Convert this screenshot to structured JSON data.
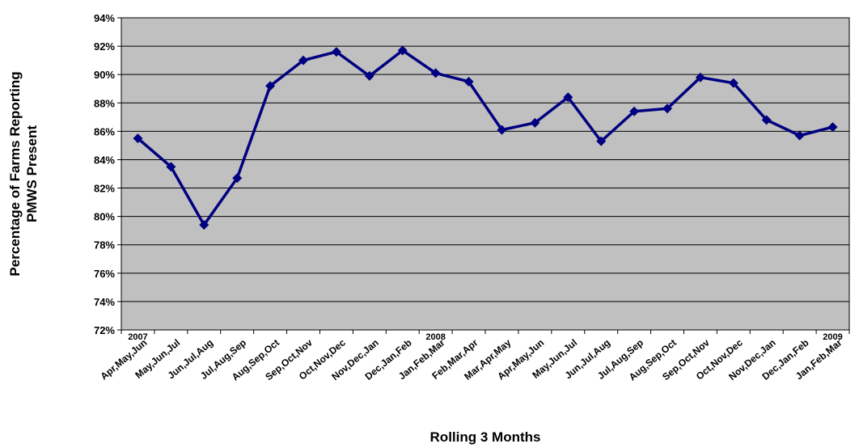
{
  "chart_data": {
    "type": "line",
    "title": "",
    "xlabel": "Rolling 3 Months",
    "ylabel_lines": [
      "Percentage of Farms  Reporting",
      "PMWS Present"
    ],
    "ylim": [
      72,
      94
    ],
    "yticks": [
      72,
      74,
      76,
      78,
      80,
      82,
      84,
      86,
      88,
      90,
      92,
      94
    ],
    "ytick_suffix": "%",
    "grid": true,
    "legend": "none",
    "colors": {
      "plot_bg": "#c0c0c0",
      "line": "#000080",
      "grid": "#000000"
    },
    "year_labels": [
      {
        "text": "2007",
        "at_index": 0
      },
      {
        "text": "2008",
        "at_index": 9
      },
      {
        "text": "2009",
        "at_index": 21
      }
    ],
    "categories": [
      "Apr,May,Jun",
      "May,Jun,Jul",
      "Jun,Jul,Aug",
      "Jul,Aug,Sep",
      "Aug,Sep,Oct",
      "Sep,Oct,Nov",
      "Oct,Nov,Dec",
      "Nov,Dec,Jan",
      "Dec,Jan,Feb",
      "Jan,Feb,Mar",
      "Feb,Mar,Apr",
      "Mar,Apr,May",
      "Apr,May,Jun",
      "May,Jun,Jul",
      "Jun,Jul,Aug",
      "Jul,Aug,Sep",
      "Aug,Sep,Oct",
      "Sep,Oct,Nov",
      "Oct,Nov,Dec",
      "Nov,Dec,Jan",
      "Dec,Jan,Feb",
      "Jan,Feb,Mar"
    ],
    "series": [
      {
        "values": [
          85.5,
          83.5,
          79.4,
          82.7,
          89.2,
          91.0,
          91.6,
          89.9,
          91.7,
          90.1,
          89.5,
          86.1,
          86.6,
          88.4,
          85.3,
          87.4,
          87.6,
          89.8,
          89.4,
          86.8,
          85.7,
          86.3
        ]
      }
    ]
  }
}
